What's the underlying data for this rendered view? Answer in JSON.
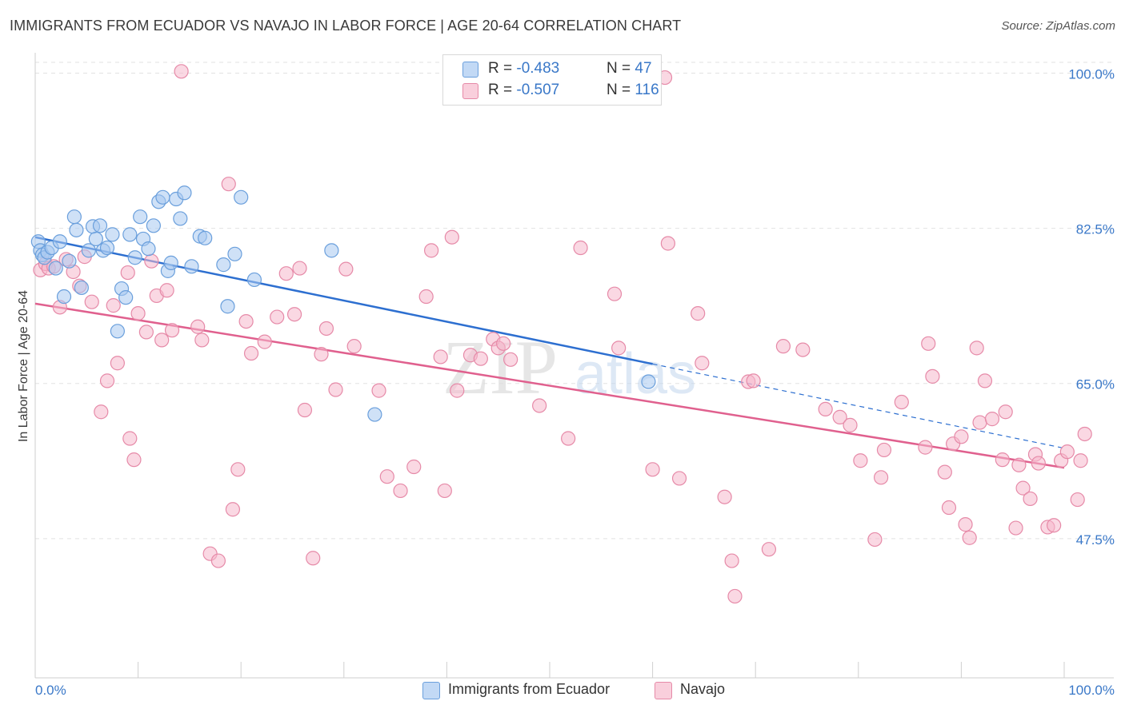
{
  "title": "IMMIGRANTS FROM ECUADOR VS NAVAJO IN LABOR FORCE | AGE 20-64 CORRELATION CHART",
  "source": "Source: ZipAtlas.com",
  "watermark": {
    "zip": "ZIP",
    "atlas": "atlas"
  },
  "legend": {
    "rows": [
      {
        "r_label": "R = ",
        "r_value": "-0.483",
        "n_label": "N = ",
        "n_value": "47"
      },
      {
        "r_label": "R = ",
        "r_value": "-0.507",
        "n_label": "N = ",
        "n_value": "116"
      }
    ]
  },
  "colors": {
    "blue_fill": "#a8c8f0",
    "blue_stroke": "#6a9fdc",
    "blue_line": "#2d6fd0",
    "pink_fill": "#f6b8cc",
    "pink_stroke": "#e68aa8",
    "pink_line": "#e0608e",
    "axis_label": "#3a78c8",
    "grid": "#e2e2e2"
  },
  "chart_data": {
    "type": "scatter",
    "title": "IMMIGRANTS FROM ECUADOR VS NAVAJO IN LABOR FORCE | AGE 20-64 CORRELATION CHART",
    "xlabel": "",
    "ylabel": "In Labor Force | Age 20-64",
    "xlim": [
      0,
      100
    ],
    "ylim": [
      31.8,
      102.3
    ],
    "x_tick_labels": [
      "0.0%",
      "100.0%"
    ],
    "y_ticks": [
      47.5,
      65.0,
      82.5,
      100.0
    ],
    "y_tick_labels": [
      "47.5%",
      "65.0%",
      "82.5%",
      "100.0%"
    ],
    "grid": true,
    "legend_position": "top-center",
    "series": [
      {
        "name": "Immigrants from Ecuador",
        "color": "#a8c8f0",
        "trend": {
          "x0": 0,
          "y0": 81.5,
          "x1": 60,
          "y1": 67.2,
          "dashed_to_x": 100,
          "dashed_to_y": 57.7
        },
        "points": [
          [
            0.3,
            81.0
          ],
          [
            0.5,
            80.0
          ],
          [
            0.7,
            79.5
          ],
          [
            0.9,
            79.2
          ],
          [
            1.2,
            79.8
          ],
          [
            1.6,
            80.3
          ],
          [
            2.0,
            78.0
          ],
          [
            2.4,
            81.0
          ],
          [
            2.8,
            74.8
          ],
          [
            3.3,
            78.8
          ],
          [
            3.8,
            83.8
          ],
          [
            4.0,
            82.3
          ],
          [
            4.5,
            75.8
          ],
          [
            5.2,
            80.0
          ],
          [
            5.6,
            82.7
          ],
          [
            5.9,
            81.3
          ],
          [
            6.3,
            82.8
          ],
          [
            6.6,
            80.0
          ],
          [
            7.0,
            80.3
          ],
          [
            7.5,
            81.8
          ],
          [
            8.0,
            70.9
          ],
          [
            8.4,
            75.7
          ],
          [
            8.8,
            74.7
          ],
          [
            9.2,
            81.8
          ],
          [
            9.7,
            79.2
          ],
          [
            10.2,
            83.8
          ],
          [
            10.5,
            81.3
          ],
          [
            11.0,
            80.2
          ],
          [
            11.5,
            82.8
          ],
          [
            12.0,
            85.5
          ],
          [
            12.4,
            86.0
          ],
          [
            12.9,
            77.7
          ],
          [
            13.2,
            78.6
          ],
          [
            13.7,
            85.8
          ],
          [
            14.1,
            83.6
          ],
          [
            14.5,
            86.5
          ],
          [
            15.2,
            78.2
          ],
          [
            16.0,
            81.6
          ],
          [
            16.5,
            81.4
          ],
          [
            18.3,
            78.4
          ],
          [
            18.7,
            73.7
          ],
          [
            19.4,
            79.6
          ],
          [
            20.0,
            86.0
          ],
          [
            21.3,
            76.7
          ],
          [
            28.8,
            80.0
          ],
          [
            33.0,
            61.5
          ],
          [
            59.6,
            65.2
          ]
        ]
      },
      {
        "name": "Navajo",
        "color": "#f6b8cc",
        "trend": {
          "x0": 0,
          "y0": 74.0,
          "x1": 100,
          "y1": 55.5
        },
        "points": [
          [
            0.5,
            77.8
          ],
          [
            1.0,
            78.5
          ],
          [
            1.3,
            78.0
          ],
          [
            1.8,
            78.2
          ],
          [
            2.4,
            73.6
          ],
          [
            3.0,
            79.0
          ],
          [
            3.7,
            77.6
          ],
          [
            4.3,
            76.0
          ],
          [
            4.8,
            79.3
          ],
          [
            5.5,
            74.2
          ],
          [
            6.4,
            61.8
          ],
          [
            7.0,
            65.3
          ],
          [
            7.6,
            73.8
          ],
          [
            8.0,
            67.3
          ],
          [
            9.0,
            77.5
          ],
          [
            9.2,
            58.8
          ],
          [
            9.6,
            56.4
          ],
          [
            10.0,
            72.9
          ],
          [
            10.8,
            70.8
          ],
          [
            11.3,
            78.8
          ],
          [
            11.8,
            74.9
          ],
          [
            12.3,
            69.9
          ],
          [
            12.8,
            75.5
          ],
          [
            13.3,
            71.0
          ],
          [
            14.2,
            100.2
          ],
          [
            15.8,
            71.4
          ],
          [
            16.2,
            69.9
          ],
          [
            17.0,
            45.8
          ],
          [
            17.8,
            45.0
          ],
          [
            18.8,
            87.5
          ],
          [
            19.2,
            50.8
          ],
          [
            19.7,
            55.3
          ],
          [
            20.5,
            72.0
          ],
          [
            21.0,
            68.4
          ],
          [
            22.3,
            69.7
          ],
          [
            23.5,
            72.5
          ],
          [
            24.4,
            77.4
          ],
          [
            25.2,
            72.8
          ],
          [
            25.7,
            78.0
          ],
          [
            26.2,
            62.0
          ],
          [
            27.0,
            45.3
          ],
          [
            27.8,
            68.3
          ],
          [
            28.3,
            71.2
          ],
          [
            29.2,
            64.3
          ],
          [
            30.2,
            77.9
          ],
          [
            31.0,
            69.2
          ],
          [
            33.4,
            64.2
          ],
          [
            34.2,
            54.5
          ],
          [
            35.5,
            52.9
          ],
          [
            36.8,
            55.6
          ],
          [
            38.0,
            74.8
          ],
          [
            38.5,
            80.0
          ],
          [
            39.4,
            68.0
          ],
          [
            39.8,
            52.9
          ],
          [
            40.5,
            81.5
          ],
          [
            41.0,
            64.2
          ],
          [
            42.3,
            68.2
          ],
          [
            43.3,
            67.8
          ],
          [
            44.5,
            70.0
          ],
          [
            45.0,
            69.0
          ],
          [
            45.5,
            69.5
          ],
          [
            46.2,
            67.7
          ],
          [
            49.0,
            62.5
          ],
          [
            51.8,
            58.8
          ],
          [
            53.0,
            80.3
          ],
          [
            56.3,
            75.1
          ],
          [
            56.7,
            69.0
          ],
          [
            60.0,
            55.3
          ],
          [
            61.2,
            99.5
          ],
          [
            61.5,
            80.8
          ],
          [
            62.6,
            54.3
          ],
          [
            64.4,
            72.9
          ],
          [
            64.8,
            67.3
          ],
          [
            67.0,
            52.2
          ],
          [
            67.7,
            45.0
          ],
          [
            68.0,
            41.0
          ],
          [
            69.3,
            65.2
          ],
          [
            69.8,
            65.3
          ],
          [
            71.3,
            46.3
          ],
          [
            72.7,
            69.2
          ],
          [
            74.6,
            68.8
          ],
          [
            76.8,
            62.1
          ],
          [
            78.2,
            61.2
          ],
          [
            79.2,
            60.3
          ],
          [
            80.2,
            56.3
          ],
          [
            81.6,
            47.4
          ],
          [
            82.2,
            54.4
          ],
          [
            82.5,
            57.5
          ],
          [
            84.2,
            62.9
          ],
          [
            86.5,
            57.8
          ],
          [
            86.8,
            69.5
          ],
          [
            87.2,
            65.8
          ],
          [
            88.4,
            55.0
          ],
          [
            88.8,
            51.0
          ],
          [
            89.2,
            58.2
          ],
          [
            90.0,
            59.0
          ],
          [
            90.4,
            49.1
          ],
          [
            90.8,
            47.6
          ],
          [
            91.5,
            69.0
          ],
          [
            91.8,
            60.6
          ],
          [
            92.3,
            65.3
          ],
          [
            93.0,
            61.0
          ],
          [
            94.0,
            56.4
          ],
          [
            94.3,
            61.8
          ],
          [
            95.3,
            48.7
          ],
          [
            95.6,
            55.8
          ],
          [
            96.0,
            53.2
          ],
          [
            96.7,
            52.0
          ],
          [
            97.2,
            57.0
          ],
          [
            97.5,
            56.0
          ],
          [
            98.4,
            48.8
          ],
          [
            99.0,
            49.0
          ],
          [
            99.7,
            56.3
          ],
          [
            100.3,
            57.3
          ],
          [
            101.3,
            51.9
          ],
          [
            101.6,
            56.3
          ],
          [
            102.0,
            59.3
          ]
        ]
      }
    ]
  },
  "axis": {
    "x_left_label": "0.0%",
    "x_right_label": "100.0%"
  },
  "bottom_legend": [
    {
      "label": "Immigrants from Ecuador"
    },
    {
      "label": "Navajo"
    }
  ]
}
